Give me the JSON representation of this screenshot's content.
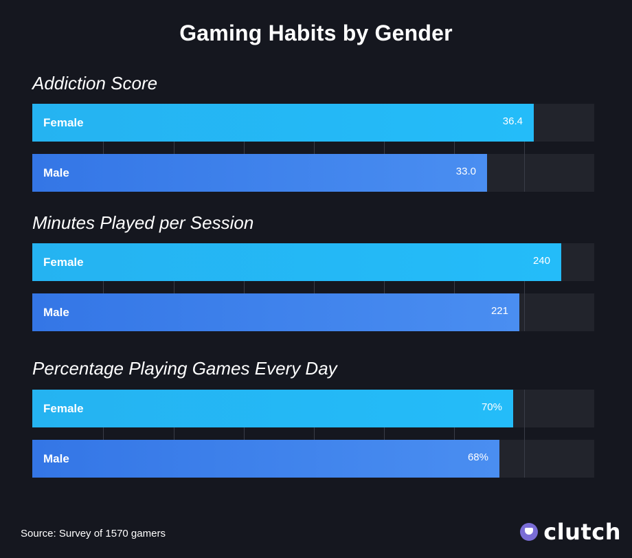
{
  "title": "Gaming Habits by Gender",
  "source": "Source: Survey of 1570 gamers",
  "brand": "clutch",
  "colors": {
    "background": "#15171f",
    "female_bar": "#24b8f6",
    "male_bar": "#3d82ec",
    "track": "#22242c"
  },
  "chart_data": [
    {
      "type": "bar",
      "orientation": "horizontal",
      "title": "Addiction Score",
      "categories": [
        "Female",
        "Male"
      ],
      "values": [
        36.4,
        33.0
      ],
      "value_labels": [
        "36.4",
        "33.0"
      ],
      "xlim": [
        0,
        40.8
      ]
    },
    {
      "type": "bar",
      "orientation": "horizontal",
      "title": "Minutes Played per Session",
      "categories": [
        "Female",
        "Male"
      ],
      "values": [
        240,
        221
      ],
      "value_labels": [
        "240",
        "221"
      ],
      "xlim": [
        0,
        255
      ]
    },
    {
      "type": "bar",
      "orientation": "horizontal",
      "title": "Percentage Playing Games Every Day",
      "categories": [
        "Female",
        "Male"
      ],
      "values": [
        70,
        68
      ],
      "value_labels": [
        "70%",
        "68%"
      ],
      "xlim": [
        0,
        81.8
      ]
    }
  ]
}
